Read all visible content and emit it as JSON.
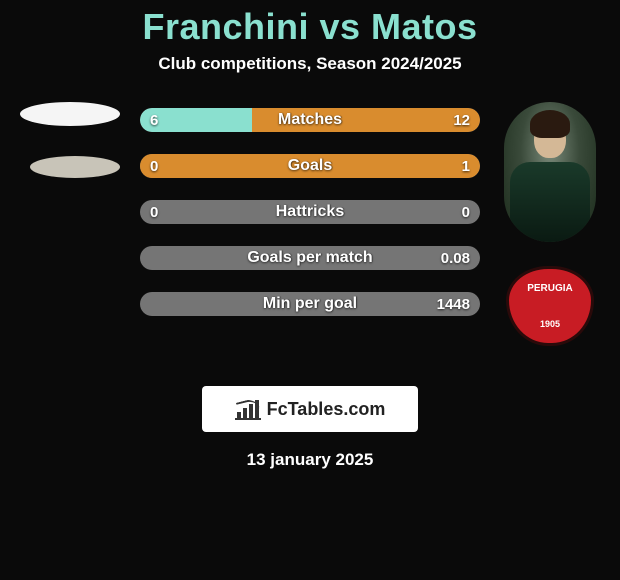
{
  "title": "Franchini vs Matos",
  "subtitle": "Club competitions, Season 2024/2025",
  "date": "13 january 2025",
  "logo_text": "FcTables.com",
  "colors": {
    "accent_title": "#8ae0cf",
    "bar_left": "#8ae0cf",
    "bar_right": "#d98c2e",
    "bar_bg": "#757575",
    "background": "#0a0a0a",
    "crest_bg": "#c81c24"
  },
  "crest": {
    "top_text": "PERUGIA",
    "year": "1905"
  },
  "stats": [
    {
      "label": "Matches",
      "left_val": "6",
      "right_val": "12",
      "left_pct": 33,
      "right_pct": 67
    },
    {
      "label": "Goals",
      "left_val": "0",
      "right_val": "1",
      "left_pct": 0,
      "right_pct": 100
    },
    {
      "label": "Hattricks",
      "left_val": "0",
      "right_val": "0",
      "left_pct": 0,
      "right_pct": 0
    },
    {
      "label": "Goals per match",
      "left_val": "",
      "right_val": "0.08",
      "left_pct": 0,
      "right_pct": 0
    },
    {
      "label": "Min per goal",
      "left_val": "",
      "right_val": "1448",
      "left_pct": 0,
      "right_pct": 0
    }
  ]
}
